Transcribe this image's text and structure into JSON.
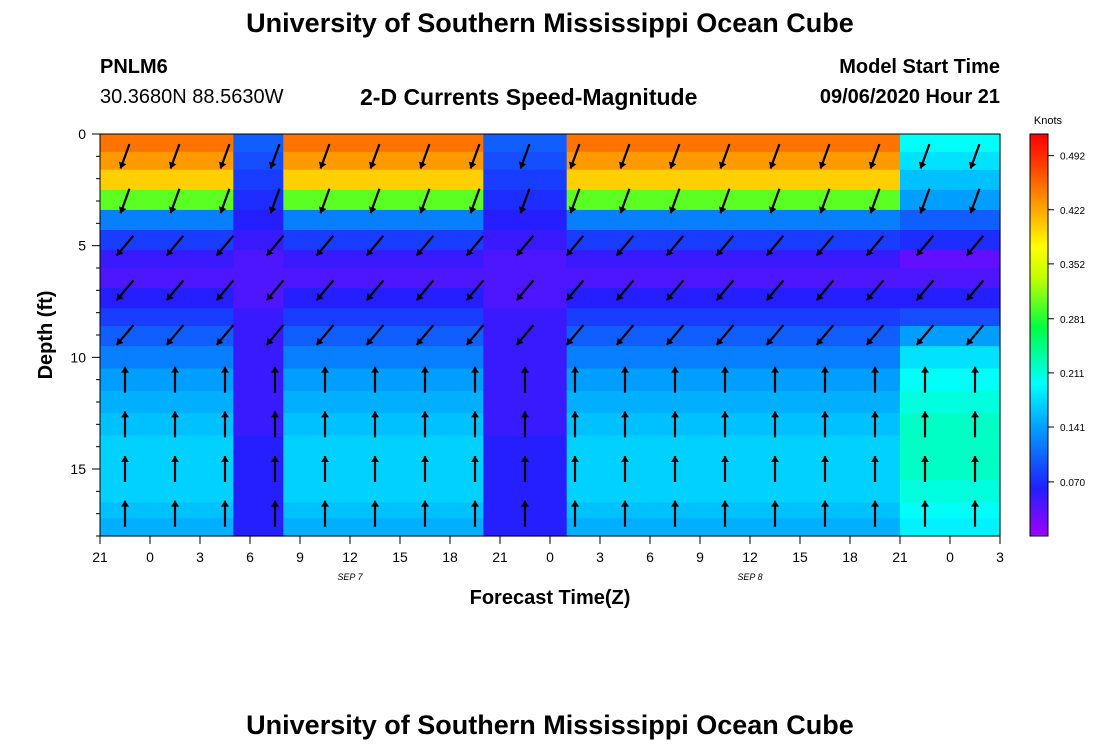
{
  "header": {
    "title_top": "University of Southern Mississippi Ocean Cube",
    "title_bottom": "University of Southern Mississippi Ocean Cube",
    "station_id": "PNLM6",
    "station_coords": "30.3680N 88.5630W",
    "chart_title": "2-D Currents Speed-Magnitude",
    "model_label": "Model Start Time",
    "model_time": "09/06/2020 Hour 21"
  },
  "chart_data": {
    "type": "heatmap",
    "title": "2-D Currents Speed-Magnitude",
    "xlabel": "Forecast Time(Z)",
    "ylabel": "Depth (ft)",
    "x_tick_labels": [
      "21",
      "0",
      "3",
      "6",
      "9",
      "12",
      "15",
      "18",
      "21",
      "0",
      "3",
      "6",
      "9",
      "12",
      "15",
      "18",
      "21",
      "0",
      "3"
    ],
    "x_hours_from_start": [
      0,
      3,
      6,
      9,
      12,
      15,
      18,
      21,
      24,
      27,
      30,
      33,
      36,
      39,
      42,
      45,
      48,
      51,
      54
    ],
    "date_labels": [
      {
        "label": "SEP 7",
        "hour": 15
      },
      {
        "label": "SEP 8",
        "hour": 39
      }
    ],
    "y_ticks": [
      0,
      5,
      10,
      15
    ],
    "ylim": [
      0,
      18
    ],
    "xlim_hours": [
      0,
      54
    ],
    "colorbar": {
      "label": "Knots",
      "ticks": [
        0.492,
        0.422,
        0.352,
        0.281,
        0.211,
        0.141,
        0.07
      ],
      "range": [
        0,
        0.52
      ]
    },
    "depth_bands_ft": [
      0,
      0.8,
      1.6,
      2.5,
      3.4,
      4.3,
      5.2,
      6.0,
      6.9,
      7.8,
      8.6,
      9.5,
      10.5,
      11.5,
      12.5,
      13.5,
      14.5,
      15.5,
      16.5,
      17.2,
      18
    ],
    "speed_profiles_knots": {
      "description": "speed per depth band for representative time regimes",
      "surface_ebb": [
        0.45,
        0.43,
        0.4,
        0.3,
        0.12,
        0.08,
        0.05,
        0.04,
        0.06,
        0.08,
        0.1,
        0.12,
        0.14,
        0.15,
        0.16,
        0.17,
        0.17,
        0.17,
        0.16,
        0.15
      ],
      "slack": [
        0.1,
        0.09,
        0.08,
        0.07,
        0.06,
        0.05,
        0.04,
        0.04,
        0.04,
        0.05,
        0.05,
        0.05,
        0.05,
        0.05,
        0.05,
        0.06,
        0.06,
        0.06,
        0.06,
        0.06
      ],
      "bottom_flood": [
        0.2,
        0.18,
        0.16,
        0.14,
        0.1,
        0.07,
        0.03,
        0.04,
        0.06,
        0.09,
        0.14,
        0.18,
        0.2,
        0.21,
        0.22,
        0.22,
        0.22,
        0.21,
        0.2,
        0.19
      ]
    },
    "time_regimes": [
      {
        "from_hour": 0,
        "to_hour": 8,
        "profile": "surface_ebb"
      },
      {
        "from_hour": 8,
        "to_hour": 11,
        "profile": "slack"
      },
      {
        "from_hour": 11,
        "to_hour": 23,
        "profile": "surface_ebb"
      },
      {
        "from_hour": 23,
        "to_hour": 28,
        "profile": "slack"
      },
      {
        "from_hour": 28,
        "to_hour": 48,
        "profile": "surface_ebb"
      },
      {
        "from_hour": 48,
        "to_hour": 54,
        "profile": "bottom_flood"
      }
    ],
    "vector_directions_deg": {
      "description": "direction the current flows toward (0 = up/north, clockwise)",
      "upper_layer": 200,
      "middle_layer": 220,
      "lower_layer": 0
    }
  }
}
